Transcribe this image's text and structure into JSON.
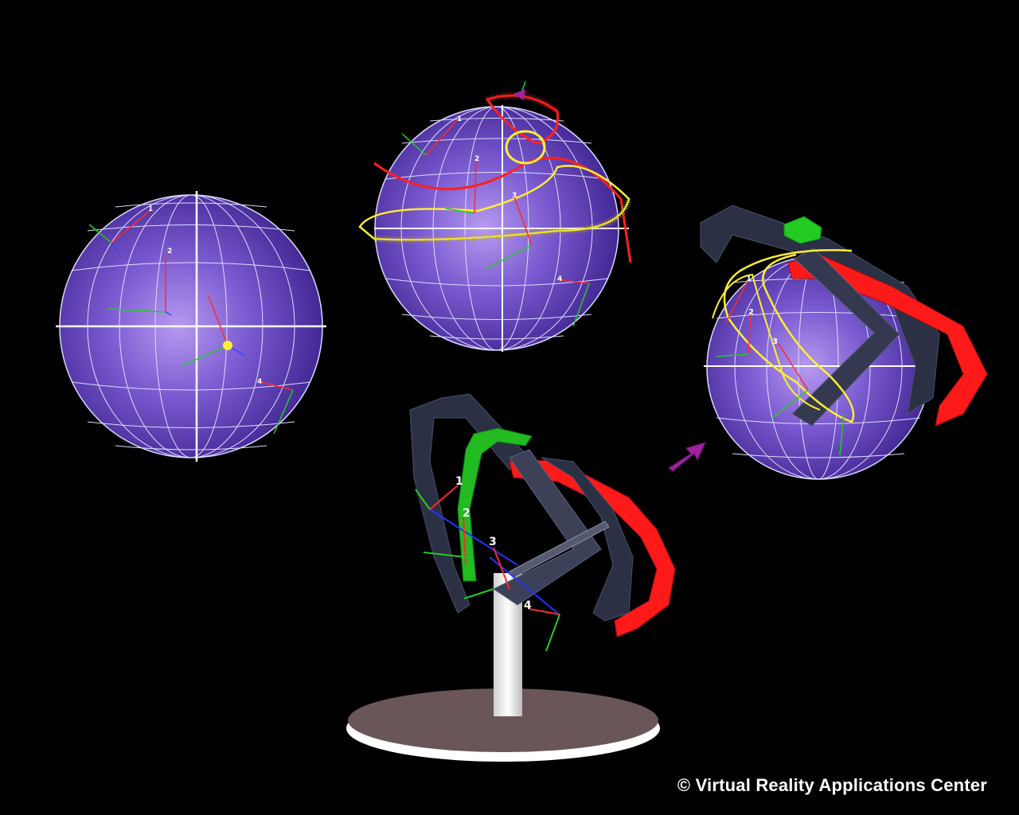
{
  "copyright": "© Virtual Reality Applications Center",
  "scene": {
    "marker_labels": [
      "1",
      "2",
      "3",
      "4"
    ],
    "colors": {
      "background": "#000000",
      "sphere": "#6a4fc0",
      "sphere_highlight": "#a98ae8",
      "grid": "#e8e8ff",
      "frame": "#2b3045",
      "frame_light": "#4a506a",
      "red_arc": "#ff1a1a",
      "green_arc": "#22cc22",
      "yellow_path": "#ffee33",
      "arrow": "#a020a0",
      "base": "#6a5656"
    }
  }
}
